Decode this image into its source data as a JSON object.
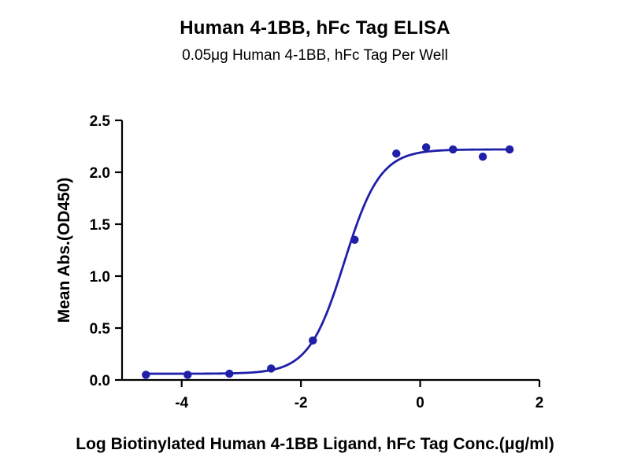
{
  "chart_data": {
    "type": "scatter",
    "title": "Human 4-1BB, hFc Tag ELISA",
    "subtitle": "0.05μg Human 4-1BB, hFc Tag Per Well",
    "xlabel": "Log Biotinylated Human 4-1BB Ligand, hFc Tag Conc.(μg/ml)",
    "ylabel": "Mean Abs.(OD450)",
    "xlim": [
      -5,
      2
    ],
    "ylim": [
      0,
      2.5
    ],
    "xticks": [
      -4,
      -2,
      0,
      2
    ],
    "xtick_labels": [
      "-4",
      "-2",
      "0",
      "2"
    ],
    "yticks": [
      0,
      0.5,
      1.0,
      1.5,
      2.0,
      2.5
    ],
    "ytick_labels": [
      "0.0",
      "0.5",
      "1.0",
      "1.5",
      "2.0",
      "2.5"
    ],
    "grid": false,
    "color": "#1f1fa8",
    "series": [
      {
        "x": [
          -4.6,
          -3.9,
          -3.2,
          -2.5,
          -1.8,
          -1.1,
          -0.4,
          0.1,
          0.55,
          1.05,
          1.5
        ],
        "y": [
          0.05,
          0.05,
          0.06,
          0.11,
          0.38,
          1.35,
          2.18,
          2.24,
          2.22,
          2.15,
          2.22
        ]
      }
    ],
    "fit_curve": {
      "type": "4PL",
      "bottom": 0.06,
      "top": 2.22,
      "logEC50": -1.27,
      "hill_slope": 1.45
    }
  }
}
